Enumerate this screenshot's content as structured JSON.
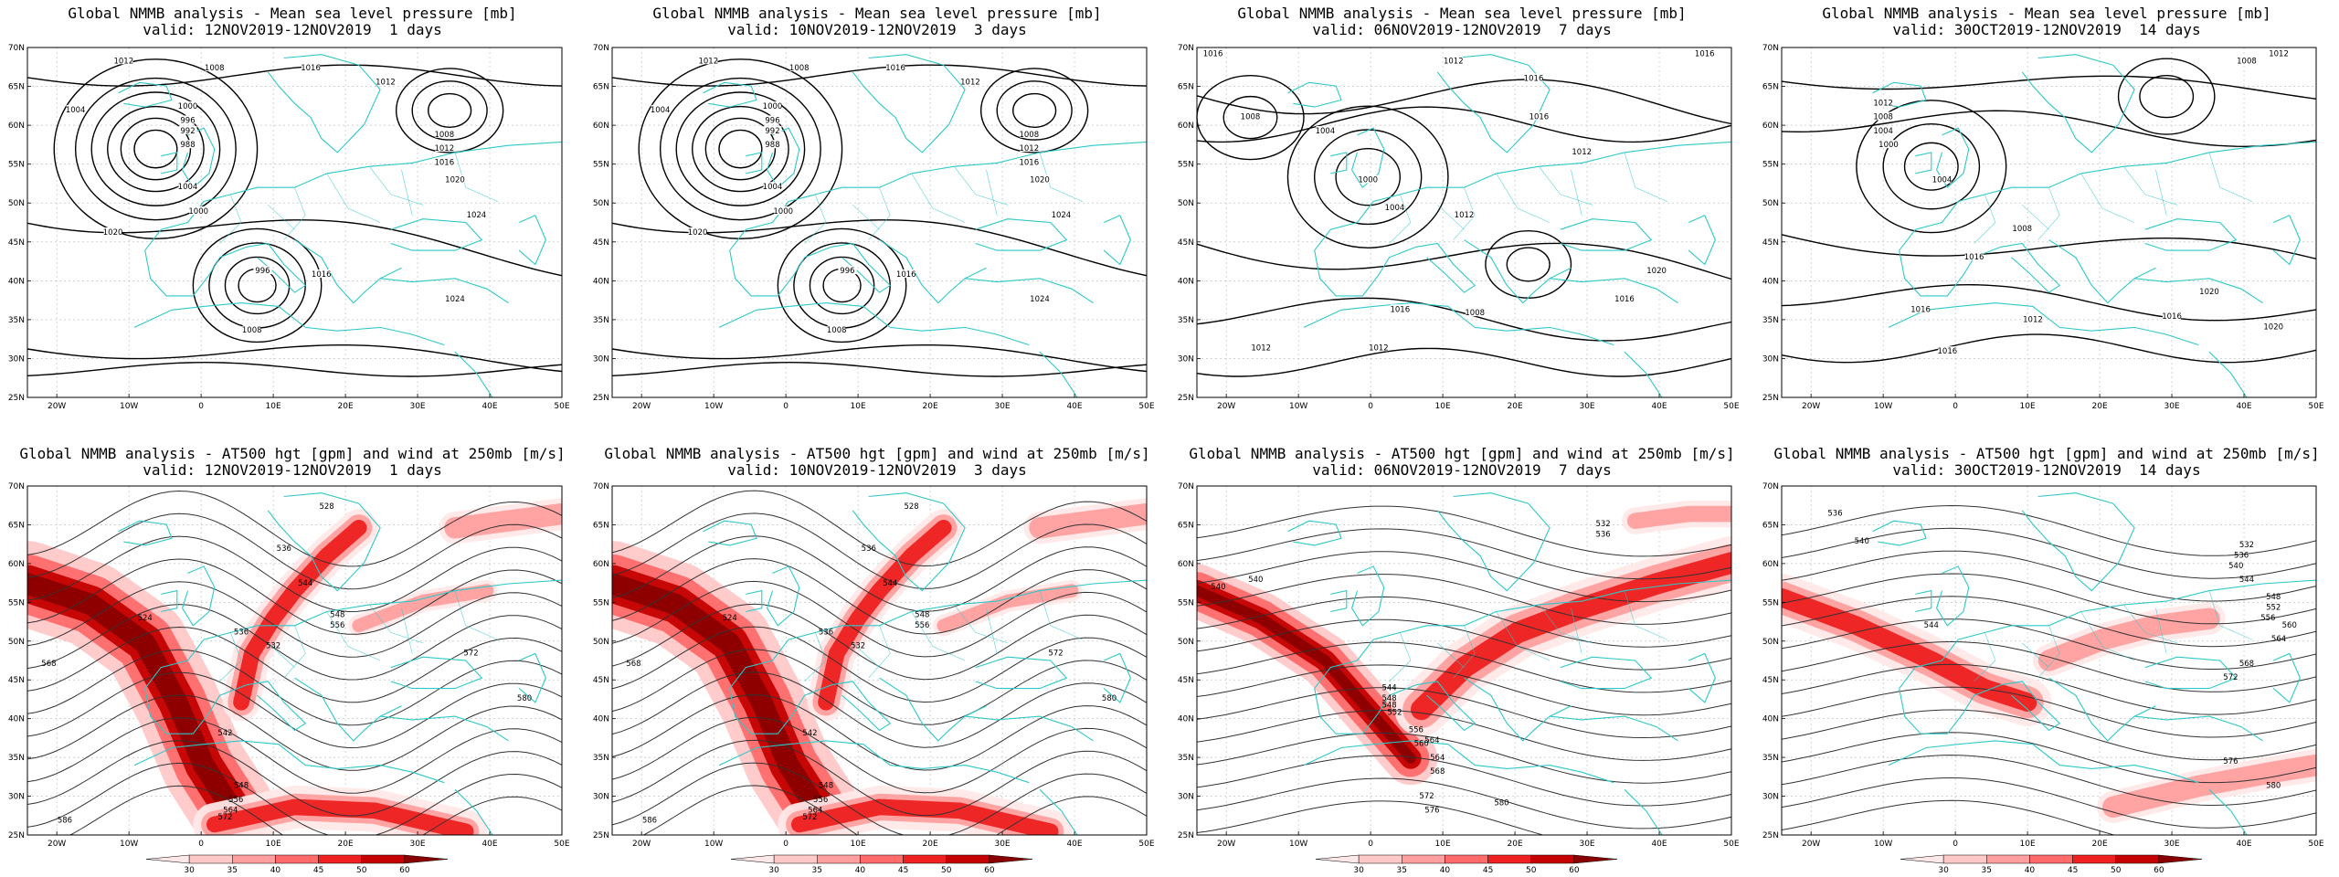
{
  "top_title": "Global NMMB analysis - Mean sea level pressure [mb]",
  "bottom_title": "Global NMMB analysis - AT500 hgt [gpm] and wind at 250mb [m/s]",
  "panels": [
    {
      "valid": "valid: 12NOV2019-12NOV2019  1 days"
    },
    {
      "valid": "valid: 10NOV2019-12NOV2019  3 days"
    },
    {
      "valid": "valid: 06NOV2019-12NOV2019  7 days"
    },
    {
      "valid": "valid: 30OCT2019-12NOV2019  14 days"
    }
  ],
  "lat_labels": [
    "70N",
    "65N",
    "60N",
    "55N",
    "50N",
    "45N",
    "40N",
    "35N",
    "30N",
    "25N"
  ],
  "lon_labels": [
    "20W",
    "10W",
    "0",
    "10E",
    "20E",
    "30E",
    "40E",
    "50E"
  ],
  "colorbar": {
    "ticks": [
      "30",
      "35",
      "40",
      "45",
      "50",
      "60"
    ],
    "colors": [
      "#ffe8e8",
      "#ffc8c8",
      "#ff9f9f",
      "#ff6a6a",
      "#ee2020",
      "#c40000",
      "#8b0000"
    ]
  },
  "colors": {
    "coast": "#2ec8c8",
    "grid": "#b8b8b8",
    "contour_mslp": "#000000",
    "contour_hgt": "#333333"
  },
  "mslp_labels": [
    [
      "1012",
      "1008",
      "1004",
      "1000",
      "996",
      "992",
      "988",
      "1016",
      "1020",
      "1024",
      "1012",
      "1008",
      "1004",
      "1000",
      "996",
      "1016",
      "1008",
      "1012",
      "1016",
      "1020",
      "1024"
    ],
    [
      "1012",
      "1008",
      "1004",
      "1000",
      "996",
      "992",
      "988",
      "1016",
      "1020",
      "1024",
      "1012",
      "1008",
      "1004",
      "1000",
      "996",
      "1016",
      "1008",
      "1012",
      "1016",
      "1020",
      "1024"
    ],
    [
      "1016",
      "1012",
      "1008",
      "1004",
      "1000",
      "1016",
      "1012",
      "1016",
      "1008",
      "1012",
      "1016",
      "1020",
      "1004",
      "1016",
      "1012",
      "1016",
      "1012"
    ],
    [
      "1008",
      "1012",
      "1008",
      "1004",
      "1000",
      "1004",
      "1008",
      "1012",
      "1016",
      "1020",
      "1016",
      "1012",
      "1016",
      "1020",
      "1016"
    ]
  ],
  "hgt_labels": [
    [
      "528",
      "536",
      "544",
      "524",
      "536",
      "532",
      "548",
      "556",
      "572",
      "580",
      "568",
      "542",
      "548",
      "556",
      "564",
      "572",
      "586"
    ],
    [
      "528",
      "536",
      "544",
      "524",
      "536",
      "532",
      "548",
      "556",
      "572",
      "580",
      "568",
      "542",
      "548",
      "556",
      "564",
      "572",
      "586"
    ],
    [
      "540",
      "532",
      "536",
      "544",
      "548",
      "552",
      "556",
      "560",
      "564",
      "568",
      "572",
      "576",
      "580",
      "540",
      "564",
      "548"
    ],
    [
      "536",
      "540",
      "532",
      "536",
      "540",
      "544",
      "548",
      "552",
      "556",
      "560",
      "564",
      "568",
      "572",
      "576",
      "580",
      "544"
    ]
  ]
}
